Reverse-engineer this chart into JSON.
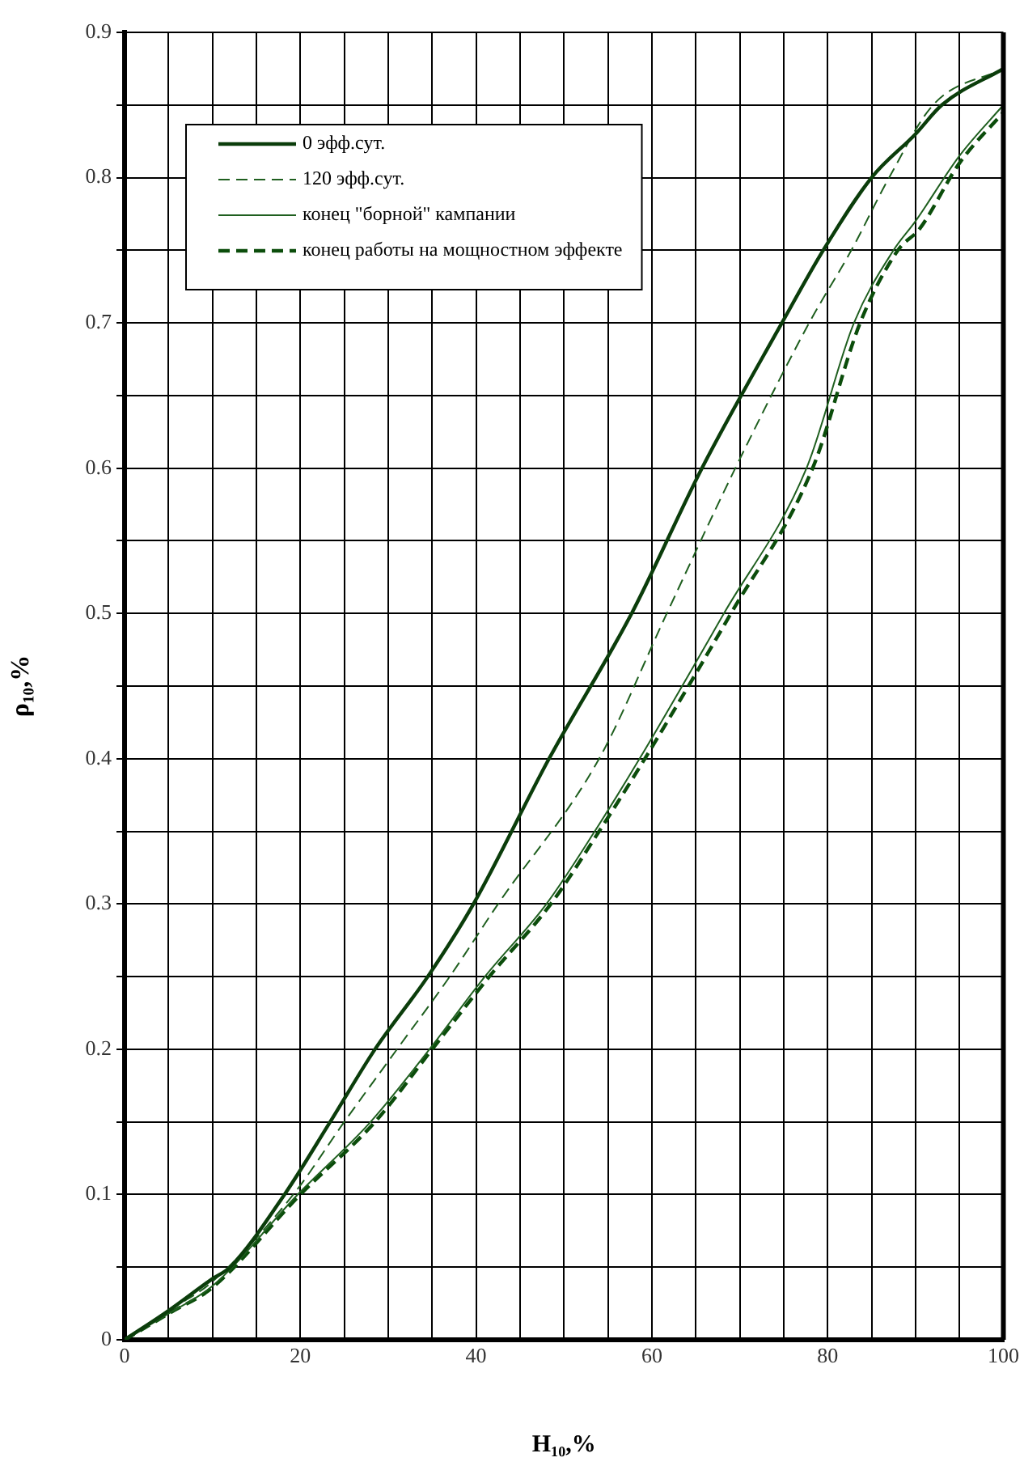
{
  "chart_data": {
    "type": "line",
    "xlabel": "H₁₀,%",
    "ylabel": "ρ₁₀,%",
    "xlim": [
      0,
      100
    ],
    "ylim": [
      0,
      0.9
    ],
    "xticks": [
      0,
      {
        "value": 5,
        "label": null
      },
      {
        "value": 10,
        "label": null
      },
      {
        "value": 15,
        "label": null
      },
      20,
      {
        "value": 25,
        "label": null
      },
      {
        "value": 30,
        "label": null
      },
      {
        "value": 35,
        "label": null
      },
      40,
      {
        "value": 45,
        "label": null
      },
      {
        "value": 50,
        "label": null
      },
      {
        "value": 55,
        "label": null
      },
      60,
      {
        "value": 65,
        "label": null
      },
      {
        "value": 70,
        "label": null
      },
      {
        "value": 75,
        "label": null
      },
      80,
      {
        "value": 85,
        "label": null
      },
      {
        "value": 90,
        "label": null
      },
      {
        "value": 95,
        "label": null
      },
      100
    ],
    "yticks": [
      0,
      {
        "value": 0.05,
        "label": null
      },
      0.1,
      {
        "value": 0.15,
        "label": null
      },
      0.2,
      {
        "value": 0.25,
        "label": null
      },
      0.3,
      {
        "value": 0.35,
        "label": null
      },
      0.4,
      {
        "value": 0.45,
        "label": null
      },
      0.5,
      {
        "value": 0.55,
        "label": null
      },
      0.6,
      {
        "value": 0.65,
        "label": null
      },
      0.7,
      {
        "value": 0.75,
        "label": null
      },
      0.8,
      {
        "value": 0.85,
        "label": null
      },
      0.9
    ],
    "grid": true,
    "legend": "top left",
    "marker": "none",
    "series": [
      {
        "name": "0 эфф.сут.",
        "color": "#0b3d0b",
        "line_style": "solid",
        "x": [
          0,
          5,
          10,
          12,
          18.2,
          23.4,
          28.5,
          34.5,
          39.7,
          48.3,
          57.7,
          65.7,
          74.8,
          79.5,
          85,
          90,
          93,
          100
        ],
        "values": [
          0,
          0.02,
          0.042,
          0.05,
          0.1,
          0.15,
          0.2,
          0.25,
          0.3,
          0.4,
          0.5,
          0.6,
          0.7,
          0.75,
          0.8,
          0.83,
          0.85,
          0.875
        ]
      },
      {
        "name": "120 эфф.сут.",
        "color": "#1f5f1f",
        "line_style": "dashed",
        "x": [
          0,
          5,
          10,
          19.2,
          25,
          31,
          37,
          42.5,
          54,
          61.7,
          69.5,
          77.9,
          82.7,
          87,
          92,
          100
        ],
        "values": [
          0,
          0.02,
          0.04,
          0.1,
          0.15,
          0.2,
          0.25,
          0.3,
          0.4,
          0.5,
          0.6,
          0.7,
          0.75,
          0.8,
          0.85,
          0.875
        ]
      },
      {
        "name": "конец \"борной\" кампании",
        "color": "#1f5f1f",
        "line_style": "solid",
        "x": [
          0,
          5,
          10,
          19.7,
          28,
          34.7,
          41,
          48,
          53.5,
          58.6,
          68.2,
          77.6,
          83,
          87.5,
          90,
          95,
          100
        ],
        "values": [
          0,
          0.018,
          0.037,
          0.1,
          0.15,
          0.2,
          0.25,
          0.3,
          0.35,
          0.4,
          0.5,
          0.6,
          0.7,
          0.75,
          0.77,
          0.815,
          0.85
        ]
      },
      {
        "name": "конец работы на мощностном эффекте",
        "color": "#0b4d0b",
        "line_style": "dashed",
        "x": [
          0,
          5,
          10,
          20,
          28.5,
          35,
          41.5,
          48.5,
          54,
          59.2,
          69,
          78.3,
          83.7,
          88,
          90.5,
          95,
          100
        ],
        "values": [
          0,
          0.018,
          0.036,
          0.1,
          0.15,
          0.2,
          0.25,
          0.3,
          0.35,
          0.4,
          0.5,
          0.6,
          0.7,
          0.75,
          0.765,
          0.81,
          0.845
        ]
      }
    ]
  }
}
